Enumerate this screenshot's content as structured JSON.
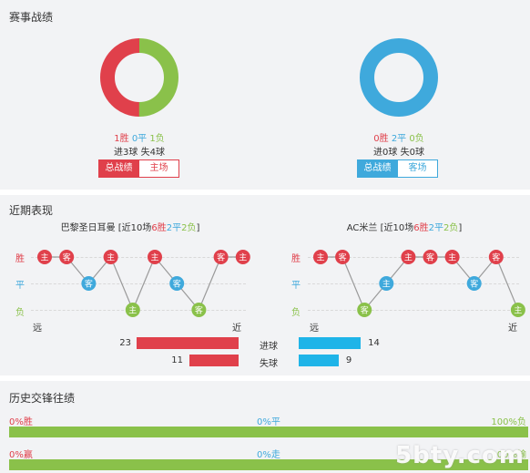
{
  "section_record": {
    "title": "赛事战绩",
    "home": {
      "win": "1胜",
      "draw": "0平",
      "loss": "1负",
      "goals": "进3球 失4球",
      "tab_total": "总战绩",
      "tab_side": "主场",
      "donut": {
        "loss_fraction": 0.5,
        "win_fraction": 0.5
      }
    },
    "away": {
      "win": "0胜",
      "draw": "2平",
      "loss": "0负",
      "goals": "进0球 失0球",
      "tab_total": "总战绩",
      "tab_side": "客场",
      "donut": {
        "draw_fraction": 1.0
      }
    }
  },
  "section_recent": {
    "title": "近期表现",
    "home": {
      "team": "巴黎圣日耳曼",
      "summary_prefix": " [近10场",
      "w": "6胜",
      "d": "2平",
      "l": "2负",
      "summary_suffix": "]",
      "axis": {
        "win": "胜",
        "draw": "平",
        "loss": "负",
        "far": "远",
        "near": "近"
      },
      "results": [
        {
          "r": "W",
          "v": "主"
        },
        {
          "r": "W",
          "v": "客"
        },
        {
          "r": "D",
          "v": "客"
        },
        {
          "r": "W",
          "v": "主"
        },
        {
          "r": "L",
          "v": "主"
        },
        {
          "r": "W",
          "v": "主"
        },
        {
          "r": "D",
          "v": "客"
        },
        {
          "r": "L",
          "v": "客"
        },
        {
          "r": "W",
          "v": "客"
        },
        {
          "r": "W",
          "v": "主"
        }
      ]
    },
    "away": {
      "team": "AC米兰",
      "summary_prefix": " [近10场",
      "w": "6胜",
      "d": "2平",
      "l": "2负",
      "summary_suffix": "]",
      "axis": {
        "win": "胜",
        "draw": "平",
        "loss": "负",
        "far": "远",
        "near": "近"
      },
      "results": [
        {
          "r": "W",
          "v": "主"
        },
        {
          "r": "W",
          "v": "客"
        },
        {
          "r": "L",
          "v": "客"
        },
        {
          "r": "D",
          "v": "主"
        },
        {
          "r": "W",
          "v": "主"
        },
        {
          "r": "W",
          "v": "客"
        },
        {
          "r": "W",
          "v": "主"
        },
        {
          "r": "D",
          "v": "客"
        },
        {
          "r": "W",
          "v": "客"
        },
        {
          "r": "L",
          "v": "主"
        }
      ]
    },
    "goals": {
      "scored_label": "进球",
      "conceded_label": "失球",
      "home_scored": 23,
      "home_conceded": 11,
      "away_scored": 14,
      "away_conceded": 9,
      "max": 23
    }
  },
  "section_h2h": {
    "title": "历史交锋往绩",
    "row1": {
      "left": "0%胜",
      "mid": "0%平",
      "right": "100%负",
      "fill": 1.0
    },
    "row2": {
      "left": "0%赢",
      "mid": "0%走",
      "right": "100%输",
      "fill": 1.0
    }
  },
  "watermark": "5bty.com",
  "colors": {
    "red": "#e0404b",
    "blue": "#3fa9dc",
    "green": "#8ac14a",
    "cyan": "#1fb4e8"
  }
}
